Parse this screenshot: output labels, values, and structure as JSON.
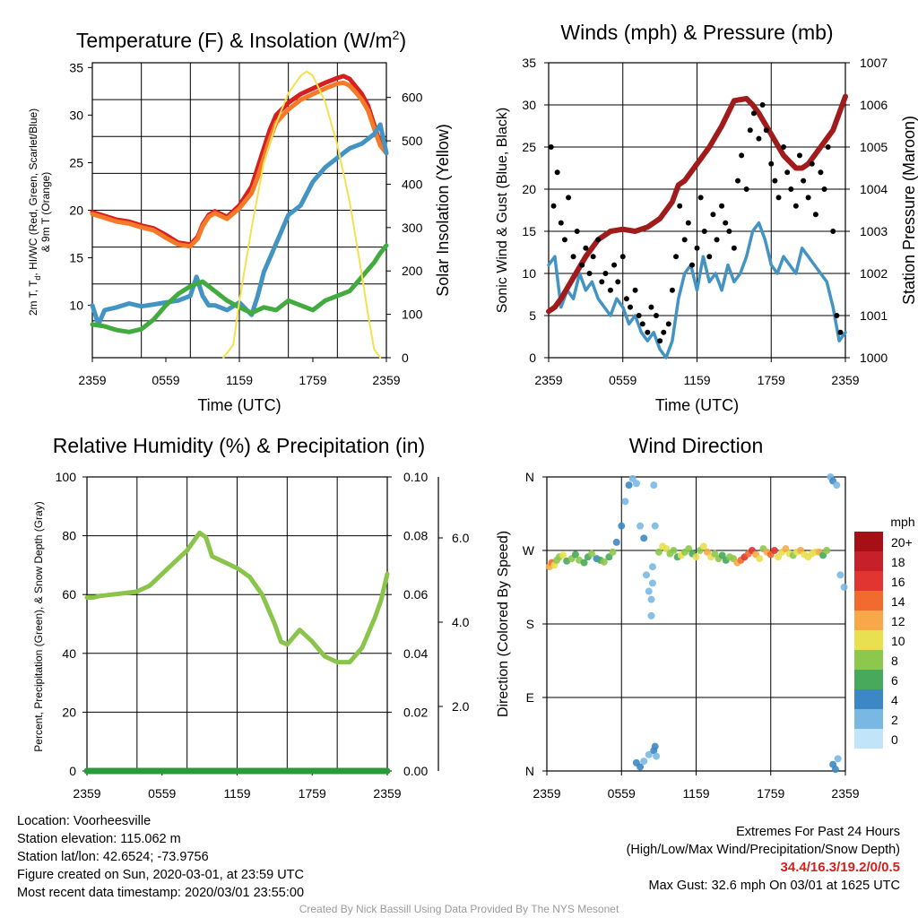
{
  "chart_data": [
    {
      "type": "line",
      "title": "Temperature (F) & Insolation (W/m",
      "title_sup": "2",
      "title_close": ")",
      "xlabel": "Time (UTC)",
      "ylabel_lines": [
        "2m T, T",
        "d",
        ", HI/WC (Red, Green, Scarlet/Blue)",
        "& 9m T (Orange)"
      ],
      "ylabel_right": "Solar Insolation (Yellow)",
      "x_ticks": [
        "2359",
        "0559",
        "1159",
        "1759",
        "2359"
      ],
      "y_ticks": [
        10,
        15,
        20,
        25,
        30,
        35
      ],
      "y_right_ticks": [
        0,
        100,
        200,
        300,
        400,
        500,
        600
      ],
      "ylim": [
        4.5,
        35.5
      ],
      "ylim_right": [
        0,
        680
      ],
      "x_hours": [
        0,
        24
      ],
      "grid": true,
      "series": [
        {
          "color": "#d62020",
          "axis": "left",
          "x": [
            0,
            1,
            2,
            3,
            4,
            5,
            6,
            7,
            8,
            8.6,
            9,
            9.5,
            10,
            11,
            12,
            13,
            13.5,
            14,
            14.5,
            15,
            16,
            17,
            18,
            19,
            20,
            20.5,
            21,
            21.5,
            22,
            22.5,
            23,
            23.5,
            24
          ],
          "values": [
            19.8,
            19.4,
            19,
            18.8,
            18.4,
            18.1,
            17.4,
            16.6,
            16.4,
            17.2,
            18.5,
            19.5,
            19.9,
            19.3,
            20.5,
            22.5,
            24.5,
            26.5,
            28.5,
            30,
            31.3,
            32.2,
            32.8,
            33.4,
            33.9,
            34.1,
            33.8,
            33,
            32.2,
            31,
            29,
            27,
            26
          ]
        },
        {
          "color": "#f47a28",
          "axis": "left",
          "x": [
            0,
            1,
            2,
            3,
            4,
            5,
            6,
            7,
            8,
            8.6,
            9,
            9.5,
            10,
            11,
            12,
            13,
            13.5,
            14,
            14.5,
            15,
            16,
            17,
            18,
            19,
            20,
            20.5,
            21,
            21.5,
            22,
            22.5,
            23,
            23.5,
            24
          ],
          "values": [
            19.6,
            19.2,
            18.8,
            18.6,
            18.2,
            17.9,
            17.1,
            16.4,
            16.2,
            17,
            18.3,
            19.3,
            19.7,
            19.1,
            20.2,
            21.8,
            23.5,
            25.5,
            27.5,
            29.2,
            30.6,
            31.6,
            32.2,
            32.8,
            33.3,
            33.4,
            33.1,
            32.4,
            31.6,
            30.5,
            28.6,
            26.8,
            26
          ]
        },
        {
          "color": "#4393c3",
          "axis": "left",
          "x": [
            0,
            0.5,
            1,
            2,
            3,
            4,
            5,
            6,
            7,
            8,
            8.5,
            9,
            9.5,
            10,
            11,
            12,
            13,
            13.5,
            14,
            15,
            16,
            17,
            18,
            19,
            20,
            21,
            22,
            23,
            23.5,
            24
          ],
          "values": [
            10,
            8,
            9.5,
            9.8,
            10.2,
            9.9,
            10.1,
            10.3,
            10.5,
            11,
            13,
            11,
            10,
            10,
            9.5,
            10.3,
            9,
            11,
            13.5,
            16.5,
            19.5,
            20.5,
            23,
            24.5,
            25.5,
            26.5,
            27,
            28,
            29,
            26
          ]
        },
        {
          "color": "#41ab3f",
          "axis": "left",
          "x": [
            0,
            1,
            2,
            3,
            4,
            5,
            6,
            7,
            8,
            9,
            10,
            11,
            12,
            13,
            14,
            15,
            16,
            17,
            18,
            19,
            20,
            21,
            22,
            23,
            23.5,
            24
          ],
          "values": [
            8,
            7.8,
            7.4,
            7.2,
            7.5,
            8.5,
            10,
            11.2,
            12,
            12.5,
            11.5,
            10.5,
            9.8,
            9.2,
            9.8,
            9.5,
            10.5,
            10,
            9.5,
            10.5,
            11,
            11.5,
            13,
            14.5,
            15.5,
            16.3
          ]
        },
        {
          "color": "#f5e050",
          "axis": "right",
          "x": [
            10.7,
            11.5,
            12,
            13,
            14,
            15,
            16,
            17,
            17.5,
            18,
            19,
            20,
            21,
            22,
            22.5,
            23,
            23.5
          ],
          "values": [
            0,
            30,
            130,
            300,
            450,
            540,
            610,
            650,
            660,
            650,
            590,
            490,
            360,
            190,
            100,
            20,
            0
          ]
        }
      ]
    },
    {
      "type": "scatter",
      "title": "Winds (mph) & Pressure (mb)",
      "xlabel": "Time (UTC)",
      "ylabel": "Sonic Wind & Gust (Blue, Black)",
      "ylabel_right": "Station Pressure (Maroon)",
      "x_ticks": [
        "2359",
        "0559",
        "1159",
        "1759",
        "2359"
      ],
      "y_ticks": [
        0,
        5,
        10,
        15,
        20,
        25,
        30,
        35
      ],
      "y_right_ticks": [
        1000,
        1001,
        1002,
        1003,
        1004,
        1005,
        1006,
        1007
      ],
      "ylim": [
        0,
        35
      ],
      "ylim_right": [
        1000,
        1007
      ],
      "x_hours": [
        0,
        24
      ],
      "grid": true,
      "wind_series": {
        "color": "#4393c3",
        "x": [
          0,
          0.5,
          1,
          1.5,
          2,
          2.5,
          3,
          3.5,
          4,
          4.5,
          5,
          5.5,
          6,
          6.5,
          7,
          7.5,
          8,
          8.5,
          9,
          9.5,
          10,
          10.5,
          11,
          11.5,
          12,
          12.5,
          13,
          13.5,
          14,
          14.5,
          15,
          15.5,
          16,
          16.5,
          17,
          17.5,
          18,
          18.5,
          19,
          19.5,
          20,
          20.5,
          21,
          21.5,
          22,
          22.5,
          23,
          23.5,
          24
        ],
        "values": [
          11,
          12,
          6,
          8,
          7,
          10,
          8,
          9,
          7,
          6,
          5,
          7,
          6,
          4,
          5,
          3,
          2,
          3,
          1,
          0,
          2,
          7,
          10,
          11,
          8,
          12,
          9,
          10,
          8,
          11,
          9,
          10,
          12,
          15,
          16,
          14,
          11,
          10,
          12,
          11,
          10,
          13,
          12,
          11,
          10,
          9,
          6,
          2,
          3
        ]
      },
      "gust_points": {
        "color": "#000000",
        "x": [
          0.2,
          0.4,
          0.7,
          1,
          1.3,
          1.6,
          2,
          2.3,
          2.7,
          3,
          3.3,
          3.6,
          4,
          4.3,
          4.6,
          5,
          5.3,
          5.6,
          6,
          6.3,
          6.6,
          7,
          7.3,
          7.6,
          8,
          8.3,
          8.7,
          9,
          9.3,
          9.7,
          10,
          10.3,
          10.6,
          11,
          11.3,
          11.6,
          12,
          12.3,
          12.6,
          13,
          13.3,
          13.6,
          14,
          14.3,
          14.6,
          15,
          15.3,
          15.6,
          16,
          16.3,
          16.6,
          17,
          17.3,
          17.6,
          18,
          18.3,
          18.6,
          19,
          19.3,
          19.6,
          20,
          20.3,
          20.6,
          21,
          21.3,
          21.6,
          22,
          22.3,
          22.6,
          23,
          23.3,
          23.6
        ],
        "values": [
          25,
          18,
          22,
          16,
          14,
          19,
          12,
          15,
          11,
          13,
          10,
          12,
          14,
          9,
          10,
          8,
          11,
          9,
          12,
          7,
          6,
          8,
          5,
          4,
          3,
          6,
          5,
          2,
          3,
          4,
          8,
          12,
          18,
          14,
          16,
          11,
          13,
          19,
          15,
          12,
          17,
          14,
          18,
          16,
          15,
          13,
          21,
          24,
          20,
          27,
          29,
          26,
          30,
          27,
          23,
          21,
          19,
          25,
          22,
          20,
          18,
          24,
          21,
          19,
          23,
          17,
          22,
          20,
          25,
          15,
          5,
          3
        ]
      },
      "pressure_series": {
        "color": "#a01c1c",
        "x": [
          0,
          0.5,
          1,
          2,
          3,
          4,
          5,
          6,
          7,
          8,
          9,
          10,
          10.5,
          11,
          12,
          13,
          14,
          14.5,
          15,
          16,
          16.5,
          17,
          18,
          19,
          20,
          20.5,
          21,
          22,
          23,
          24
        ],
        "values": [
          1001.1,
          1001.2,
          1001.4,
          1001.9,
          1002.4,
          1002.8,
          1003,
          1003.05,
          1003,
          1003.1,
          1003.3,
          1003.7,
          1004.1,
          1004.2,
          1004.6,
          1005,
          1005.5,
          1005.8,
          1006.1,
          1006.15,
          1006,
          1005.8,
          1005.3,
          1004.8,
          1004.5,
          1004.5,
          1004.6,
          1005,
          1005.4,
          1006.2
        ]
      }
    },
    {
      "type": "line",
      "title": "Relative Humidity (%) & Precipitation (in)",
      "ylabel": "Percent, Precipitation (Green), & Snow Depth (Gray)",
      "x_ticks": [
        "2359",
        "0559",
        "1159",
        "1759",
        "2359"
      ],
      "y_ticks": [
        0,
        20,
        40,
        60,
        80,
        100
      ],
      "y_right_ticks": [
        "0.00",
        "0.02",
        "0.04",
        "0.06",
        "0.08",
        "0.10"
      ],
      "y_right2_ticks": [
        "2.0",
        "4.0",
        "6.0"
      ],
      "ylim": [
        0,
        100
      ],
      "x_hours": [
        0,
        24
      ],
      "grid": true,
      "series": [
        {
          "color": "#8ac44a",
          "x": [
            0,
            0.5,
            1,
            2,
            3,
            4,
            5,
            6,
            7,
            8,
            8.5,
            9,
            9.5,
            10,
            11,
            12,
            13,
            14,
            15,
            15.5,
            16,
            17,
            18,
            19,
            20,
            21,
            22,
            23,
            23.5,
            24
          ],
          "values": [
            59,
            59,
            59.5,
            60,
            60.5,
            61,
            63,
            67,
            71,
            75,
            78,
            81,
            79.5,
            73,
            71,
            69,
            66,
            60,
            50,
            44,
            43,
            48,
            44,
            39,
            37,
            37,
            42,
            52,
            58,
            67
          ]
        },
        {
          "color": "#2a9a3a",
          "x": [
            0,
            24
          ],
          "values": [
            0,
            0
          ]
        }
      ]
    },
    {
      "type": "scatter",
      "title": "Wind Direction",
      "ylabel": "Direction (Colored By Speed)",
      "x_ticks": [
        "2359",
        "0559",
        "1159",
        "1759",
        "2359"
      ],
      "y_ticks": [
        "N",
        "W",
        "S",
        "E",
        "N"
      ],
      "x_hours": [
        0,
        24
      ],
      "grid": true,
      "legend_title": "mph",
      "legend_labels": [
        "20+",
        "18",
        "16",
        "14",
        "12",
        "10",
        "8",
        "6",
        "4",
        "2",
        "0"
      ],
      "legend_colors": [
        "#a50f15",
        "#c8202a",
        "#e03530",
        "#f26b2e",
        "#f8a848",
        "#e8e04e",
        "#8cc84c",
        "#48a85c",
        "#3d88c4",
        "#7ab8e4",
        "#c2e4f8"
      ],
      "points": {
        "x": [
          0.2,
          0.4,
          0.6,
          0.8,
          1,
          1.3,
          1.6,
          2,
          2.3,
          2.6,
          3,
          3.3,
          3.6,
          4,
          4.3,
          4.6,
          5,
          5.3,
          5.6,
          6,
          6.3,
          6.6,
          6.9,
          7.2,
          7.5,
          7.8,
          8,
          8.2,
          8.4,
          8.4,
          8.5,
          8.5,
          8.6,
          8.7,
          9,
          9.3,
          9.6,
          9.9,
          10.2,
          10.5,
          10.8,
          11.1,
          11.4,
          11.7,
          12,
          12.3,
          12.6,
          12.9,
          13.2,
          13.5,
          13.8,
          14.1,
          14.4,
          14.7,
          15,
          15.3,
          15.6,
          15.9,
          16.2,
          16.5,
          16.8,
          17.1,
          17.4,
          17.7,
          18,
          18.3,
          18.6,
          18.9,
          19.2,
          19.5,
          19.8,
          20.1,
          20.4,
          20.7,
          21,
          21.3,
          21.6,
          21.9,
          22.2,
          22.5,
          22.8,
          23,
          23.3,
          23.6,
          23.9,
          7.2,
          7.5,
          7.8,
          8.2,
          8.6,
          8.7,
          8.8,
          23,
          23.2,
          23.4
        ],
        "dir": [
          250,
          255,
          252,
          258,
          262,
          264,
          257,
          260,
          265,
          258,
          255,
          262,
          266,
          260,
          258,
          256,
          262,
          268,
          280,
          300,
          330,
          350,
          358,
          352,
          300,
          285,
          240,
          220,
          210,
          190,
          230,
          250,
          350,
          300,
          268,
          275,
          272,
          266,
          270,
          262,
          264,
          268,
          272,
          266,
          262,
          270,
          275,
          268,
          262,
          266,
          260,
          264,
          258,
          262,
          260,
          255,
          258,
          262,
          266,
          270,
          265,
          260,
          272,
          268,
          265,
          270,
          262,
          268,
          272,
          266,
          264,
          268,
          270,
          265,
          262,
          266,
          268,
          268,
          264,
          270,
          0,
          355,
          350,
          240,
          225,
          10,
          5,
          12,
          20,
          25,
          30,
          18,
          8,
          2,
          15
        ],
        "speed": [
          12,
          14,
          10,
          8,
          7,
          9,
          6,
          8,
          5,
          7,
          6,
          5,
          7,
          4,
          6,
          8,
          5,
          7,
          4,
          3,
          2,
          3,
          2,
          1,
          1,
          3,
          2,
          1,
          2,
          2,
          1,
          1,
          1,
          2,
          8,
          9,
          10,
          8,
          7,
          6,
          9,
          8,
          7,
          6,
          9,
          8,
          10,
          11,
          9,
          8,
          7,
          6,
          5,
          8,
          7,
          12,
          14,
          16,
          13,
          15,
          12,
          10,
          8,
          11,
          14,
          15,
          10,
          9,
          11,
          9,
          8,
          10,
          11,
          10,
          9,
          10,
          9,
          11,
          6,
          8,
          2,
          3,
          1,
          2,
          1,
          4,
          3,
          2,
          1,
          3,
          3,
          2,
          4,
          3,
          2
        ]
      }
    }
  ],
  "info": {
    "location": "Location: Voorheesville",
    "elevation": "Station elevation: 115.062 m",
    "latlon": "Station lat/lon: 42.6524; -73.9756",
    "created": "Figure created on Sun, 2020-03-01, at 23:59 UTC",
    "recent": "Most recent data timestamp: 2020/03/01 23:55:00"
  },
  "extremes": {
    "heading": "Extremes For Past 24 Hours",
    "subheading": "(High/Low/Max Wind/Precipitation/Snow Depth)",
    "values": "34.4/16.3/19.2/0/0.5",
    "max_gust": "Max Gust: 32.6 mph On 03/01 at 1625 UTC"
  },
  "credit": "Created By Nick Bassill Using Data Provided By The NYS Mesonet"
}
